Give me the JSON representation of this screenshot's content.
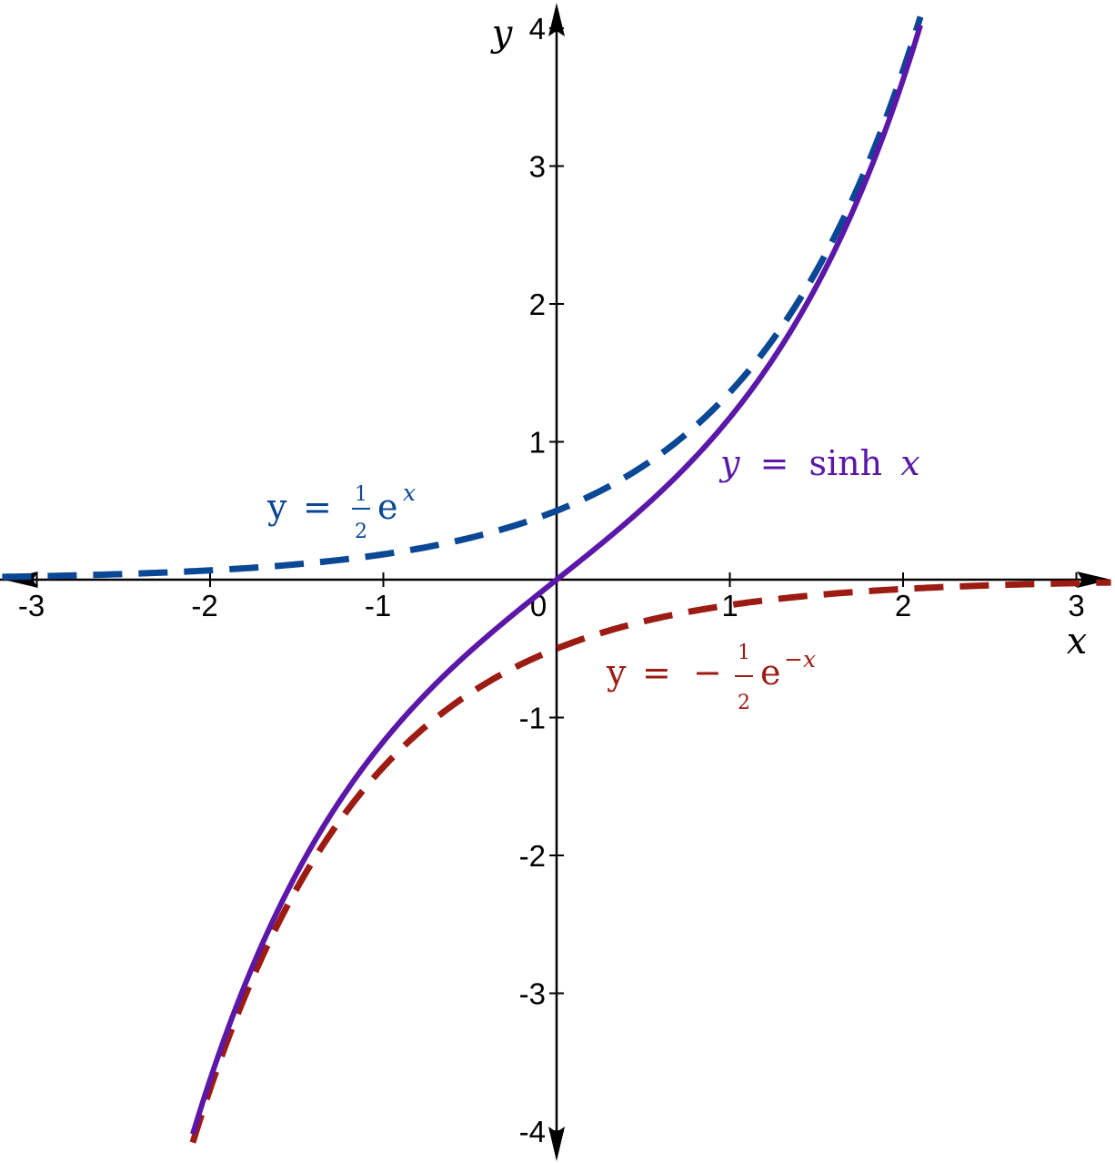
{
  "chart_data": {
    "type": "line",
    "xlabel": "x",
    "ylabel": "y",
    "xlim": [
      -3.2,
      3.2
    ],
    "ylim": [
      -4,
      4
    ],
    "x_ticks": [
      -3,
      -2,
      -1,
      1,
      2,
      3
    ],
    "y_ticks": [
      -4,
      -3,
      -2,
      -1,
      1,
      2,
      3,
      4
    ],
    "x_tick_labels": [
      "-3",
      "-2",
      "-1",
      "1",
      "2",
      "3"
    ],
    "y_tick_labels": [
      "-4",
      "-3",
      "-2",
      "-1",
      "1",
      "2",
      "3",
      "4"
    ],
    "origin_label": "0",
    "grid": false,
    "series": [
      {
        "name": "y = sinh x",
        "function": "sinh",
        "color": "#5b17a8",
        "style": "solid",
        "x": [
          -2.1,
          -1.5,
          -1,
          -0.5,
          0,
          0.5,
          1,
          1.5,
          2.1
        ],
        "y": [
          -4.02,
          -2.13,
          -1.18,
          -0.52,
          0,
          0.52,
          1.18,
          2.13,
          4.02
        ]
      },
      {
        "name": "y = ½eˣ",
        "function": "half_exp",
        "color": "#0a4794",
        "style": "dashed",
        "x": [
          -3.2,
          -3,
          -2,
          -1,
          0,
          1,
          1.5,
          2,
          2.1
        ],
        "y": [
          0.02,
          0.02,
          0.07,
          0.18,
          0.5,
          1.36,
          2.24,
          3.69,
          4.08
        ]
      },
      {
        "name": "y = -½e⁻ˣ",
        "function": "neg_half_exp_neg",
        "color": "#9c1b12",
        "style": "dashed",
        "x": [
          -2.1,
          -2,
          -1.5,
          -1,
          0,
          1,
          2,
          3,
          3.2
        ],
        "y": [
          -4.08,
          -3.69,
          -2.24,
          -1.36,
          -0.5,
          -0.18,
          -0.07,
          -0.02,
          -0.02
        ]
      }
    ],
    "labels": {
      "sinh": {
        "y": "y",
        "eq": "=",
        "fn": "sinh",
        "x": "x"
      },
      "pos": {
        "y": "y",
        "eq": "=",
        "num": "1",
        "den": "2",
        "e": "e",
        "exp": "x"
      },
      "neg": {
        "y": "y",
        "eq": "=",
        "minus": "−",
        "num": "1",
        "den": "2",
        "e": "e",
        "exp": "−x"
      }
    }
  }
}
